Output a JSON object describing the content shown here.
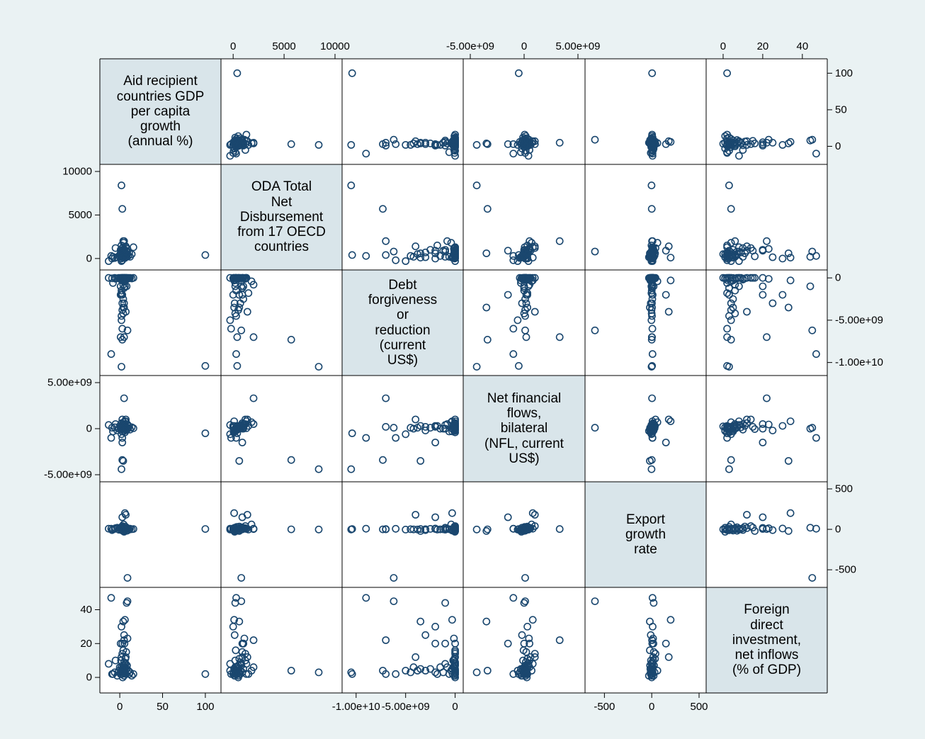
{
  "colors": {
    "background": "#eaf2f3",
    "plot_fill": "#ffffff",
    "diagonal_fill": "#d9e5ea",
    "marker": "#1a476f",
    "frame": "#000000"
  },
  "chart_data": {
    "type": "scatter",
    "subtype": "scatter-matrix",
    "marker": "hollow-circle",
    "grid": false,
    "variables": [
      {
        "label": "Aid recipient\ncountries GDP\nper capita\ngrowth\n(annual %)",
        "range": [
          -15,
          110
        ],
        "ticks": [
          0,
          50,
          100
        ],
        "tick_labels": [
          "0",
          "50",
          "100"
        ]
      },
      {
        "label": "ODA Total\nNet\nDisbursement\nfrom 17 OECD\ncountries",
        "range": [
          -500,
          10000
        ],
        "ticks": [
          0,
          5000,
          10000
        ],
        "tick_labels": [
          "0",
          "5000",
          "10000"
        ]
      },
      {
        "label": "Debt\nforgiveness\nor\nreduction\n(current\nUS$)",
        "range": [
          -10700000000,
          100000000
        ],
        "ticks": [
          -10000000000,
          -5000000000,
          0
        ],
        "tick_labels": [
          "-1.00e+10",
          "-5.00e+09",
          "0"
        ]
      },
      {
        "label": "Net financial\nflows,\nbilateral\n(NFL, current\nUS$)",
        "range": [
          -5000000000,
          5000000000
        ],
        "ticks": [
          -5000000000,
          0,
          5000000000
        ],
        "tick_labels": [
          "-5.00e+09",
          "0",
          "5.00e+09"
        ]
      },
      {
        "label": "Export\ngrowth\nrate",
        "range": [
          -630,
          500
        ],
        "ticks": [
          -500,
          0,
          500
        ],
        "tick_labels": [
          "-500",
          "0",
          "500"
        ]
      },
      {
        "label": "Foreign\ndirect\ninvestment,\nnet inflows\n(% of GDP)",
        "range": [
          -5,
          49
        ],
        "ticks": [
          0,
          20,
          40
        ],
        "tick_labels": [
          "0",
          "20",
          "40"
        ]
      }
    ],
    "axis_placement": {
      "top": [
        1,
        3,
        5
      ],
      "bottom": [
        0,
        2,
        4
      ],
      "left": [
        1,
        3,
        5
      ],
      "right": [
        0,
        2,
        4
      ]
    },
    "observations": [
      [
        -13,
        -300,
        0,
        400000000,
        8,
        8
      ],
      [
        -9,
        0,
        -50000000,
        100000000,
        -10,
        2
      ],
      [
        -6,
        50,
        0,
        150000000,
        5,
        3
      ],
      [
        -3,
        150,
        -30000000,
        -200000000,
        20,
        1
      ],
      [
        -1,
        300,
        0,
        0,
        -5,
        4
      ],
      [
        0,
        400,
        -100000000,
        300000000,
        12,
        6
      ],
      [
        1,
        600,
        0,
        200000000,
        2,
        2
      ],
      [
        1.5,
        200,
        -200000000,
        -100000000,
        -8,
        10
      ],
      [
        2,
        900,
        0,
        600000000,
        15,
        12
      ],
      [
        2.5,
        350,
        -50000000,
        50000000,
        30,
        3
      ],
      [
        3,
        1200,
        0,
        1000000000,
        40,
        14
      ],
      [
        3,
        100,
        -300000000,
        -300000000,
        -15,
        5
      ],
      [
        3.5,
        500,
        0,
        250000000,
        0,
        0
      ],
      [
        4,
        800,
        -80000000,
        400000000,
        25,
        7
      ],
      [
        4,
        250,
        0,
        -50000000,
        -20,
        16
      ],
      [
        4.5,
        1800,
        -400000000,
        700000000,
        60,
        4
      ],
      [
        5,
        700,
        0,
        150000000,
        5,
        9
      ],
      [
        5,
        150,
        -20000000,
        -250000000,
        -30,
        1
      ],
      [
        5.5,
        1000,
        0,
        500000000,
        18,
        20
      ],
      [
        6,
        450,
        -150000000,
        100000000,
        10,
        6
      ],
      [
        6,
        50,
        0,
        -400000000,
        -12,
        3
      ],
      [
        6.5,
        600,
        -60000000,
        300000000,
        35,
        11
      ],
      [
        7,
        1300,
        0,
        800000000,
        8,
        8
      ],
      [
        7,
        200,
        -250000000,
        0,
        -6,
        2
      ],
      [
        7.5,
        900,
        0,
        200000000,
        22,
        15
      ],
      [
        8,
        350,
        -10000000,
        -150000000,
        3,
        5
      ],
      [
        8.5,
        500,
        0,
        100000000,
        -18,
        7
      ],
      [
        9,
        1100,
        -120000000,
        450000000,
        14,
        23
      ],
      [
        10,
        300,
        0,
        50000000,
        6,
        4
      ],
      [
        11,
        700,
        -40000000,
        250000000,
        -4,
        2
      ],
      [
        12,
        200,
        0,
        -100000000,
        9,
        3
      ],
      [
        14,
        500,
        -70000000,
        150000000,
        2,
        1
      ],
      [
        16,
        1300,
        0,
        50000000,
        4,
        2
      ],
      [
        2,
        -300,
        -5000000000,
        -600000000,
        -3,
        4
      ],
      [
        3,
        -200,
        -6000000000,
        -1000000000,
        7,
        2
      ],
      [
        1,
        400,
        -7000000000,
        200000000,
        1,
        2
      ],
      [
        2,
        300,
        -4500000000,
        100000000,
        2,
        3
      ],
      [
        4,
        200,
        -4200000000,
        0,
        -1,
        6
      ],
      [
        5,
        100,
        -3500000000,
        300000000,
        3,
        5
      ],
      [
        3,
        500,
        -3800000000,
        100000000,
        -2,
        4
      ],
      [
        2,
        300,
        -1500000000,
        0,
        0,
        6
      ],
      [
        1,
        600,
        -2000000000,
        200000000,
        5,
        3
      ],
      [
        6,
        800,
        -1000000000,
        400000000,
        -4,
        8
      ],
      [
        4,
        1000,
        -2500000000,
        100000000,
        6,
        5
      ],
      [
        3,
        700,
        -3000000000,
        200000000,
        2,
        4
      ],
      [
        5,
        900,
        -1200000000,
        0,
        1,
        3
      ],
      [
        2,
        1500,
        -1800000000,
        300000000,
        -3,
        2
      ],
      [
        4,
        2000,
        -800000000,
        500000000,
        8,
        6
      ],
      [
        -8,
        200,
        -600000000,
        -300000000,
        2,
        2
      ],
      [
        -5,
        1200,
        -100000000,
        500000000,
        15,
        10
      ],
      [
        3,
        5700,
        -7300000000,
        -3400000000,
        0,
        4
      ],
      [
        2,
        8400,
        -10500000000,
        -4400000000,
        -2,
        3
      ],
      [
        100,
        400,
        -10400000000,
        -500000000,
        4,
        2
      ],
      [
        5,
        2000,
        -7000000000,
        3300000000,
        3,
        22
      ],
      [
        7,
        1400,
        -4000000000,
        1000000000,
        180,
        12
      ],
      [
        3,
        900,
        -2000000000,
        -1500000000,
        150,
        20
      ],
      [
        -10,
        300,
        -9000000000,
        -1000000000,
        8,
        47
      ],
      [
        9,
        800,
        -6200000000,
        100000000,
        -600,
        45
      ],
      [
        4,
        600,
        -3500000000,
        -3500000000,
        -20,
        33
      ],
      [
        6,
        100,
        -300000000,
        800000000,
        200,
        34
      ],
      [
        8,
        200,
        -1000000000,
        0,
        20,
        44
      ],
      [
        2,
        0,
        -2000000000,
        300000000,
        10,
        30
      ],
      [
        5,
        150,
        -3000000000,
        -200000000,
        -10,
        25
      ],
      [
        1,
        1000,
        -1000000000,
        0,
        5,
        20
      ]
    ]
  }
}
